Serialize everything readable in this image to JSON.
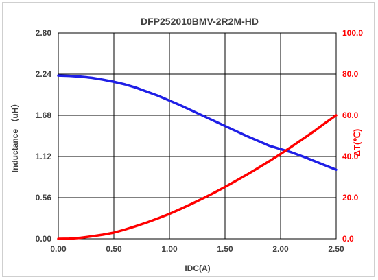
{
  "chart_data": {
    "type": "line",
    "title": "DFP252010BMV-2R2M-HD",
    "xlabel": "IDC(A)",
    "ylabel_left": "Inductance （uH）",
    "ylabel_right": "ΔT(℃)",
    "xlim": [
      0,
      2.5
    ],
    "ylim_left": [
      0,
      2.8
    ],
    "ylim_right": [
      0,
      100
    ],
    "x_ticks": [
      "0.00",
      "0.50",
      "1.00",
      "1.50",
      "2.00",
      "2.50"
    ],
    "y_left_ticks": [
      "0.00",
      "0.56",
      "1.12",
      "1.68",
      "2.24",
      "2.80"
    ],
    "y_right_ticks": [
      "0.0",
      "20.0",
      "40.0",
      "60.0",
      "80.0",
      "100.0"
    ],
    "grid": true,
    "series": [
      {
        "axis": "left",
        "color": "#1f1fe6",
        "x": [
          0,
          0.1,
          0.2,
          0.3,
          0.4,
          0.5,
          0.6,
          0.7,
          0.8,
          0.9,
          1.0,
          1.1,
          1.2,
          1.3,
          1.4,
          1.5,
          1.6,
          1.7,
          1.8,
          1.9,
          2.0,
          2.1,
          2.2,
          2.3,
          2.4,
          2.5
        ],
        "values": [
          2.22,
          2.215,
          2.205,
          2.19,
          2.165,
          2.135,
          2.1,
          2.055,
          2.0,
          1.945,
          1.88,
          1.815,
          1.745,
          1.675,
          1.605,
          1.535,
          1.465,
          1.395,
          1.33,
          1.265,
          1.22,
          1.175,
          1.12,
          1.06,
          1.0,
          0.94
        ]
      },
      {
        "axis": "right",
        "color": "#ff0000",
        "x": [
          0,
          0.1,
          0.2,
          0.3,
          0.4,
          0.5,
          0.6,
          0.7,
          0.8,
          0.9,
          1.0,
          1.1,
          1.2,
          1.3,
          1.4,
          1.5,
          1.6,
          1.7,
          1.8,
          1.9,
          2.0,
          2.1,
          2.2,
          2.3,
          2.4,
          2.5
        ],
        "values": [
          0,
          0.1,
          0.5,
          1.2,
          2.0,
          3.0,
          4.5,
          6.2,
          8.0,
          10.0,
          12.1,
          14.5,
          17.0,
          19.6,
          22.3,
          25.2,
          28.2,
          31.3,
          34.5,
          37.8,
          41.2,
          44.8,
          48.5,
          52.2,
          56.2,
          60.0
        ]
      }
    ]
  }
}
